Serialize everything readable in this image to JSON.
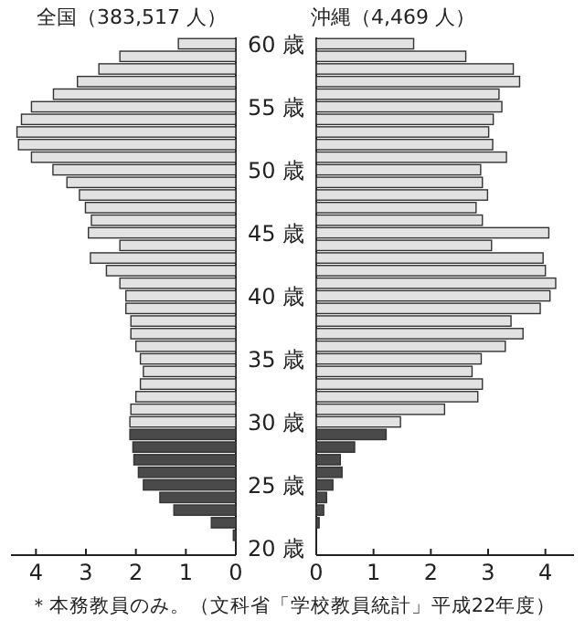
{
  "chart_data": [
    {
      "type": "bar",
      "orientation": "horizontal",
      "title": "全国（383,517 人）",
      "categories": [
        "60 歳",
        null,
        null,
        null,
        null,
        "55 歳",
        null,
        null,
        null,
        null,
        "50 歳",
        null,
        null,
        null,
        null,
        "45 歳",
        null,
        null,
        null,
        null,
        "40 歳",
        null,
        null,
        null,
        null,
        "35 歳",
        null,
        null,
        null,
        null,
        "30 歳",
        null,
        null,
        null,
        null,
        "25 歳",
        null,
        null,
        null,
        null,
        "20 歳"
      ],
      "values": [
        1.15,
        2.32,
        2.74,
        3.17,
        3.65,
        4.09,
        4.29,
        4.38,
        4.35,
        4.09,
        3.66,
        3.38,
        3.13,
        3.01,
        2.89,
        2.95,
        2.32,
        2.91,
        2.59,
        2.32,
        2.2,
        2.2,
        2.1,
        2.1,
        2.0,
        1.91,
        1.85,
        1.91,
        2.0,
        2.1,
        2.12,
        2.12,
        2.06,
        2.04,
        1.95,
        1.85,
        1.52,
        1.24,
        0.49,
        0.05,
        0
      ],
      "colors": [
        "#e2e2e2",
        "#e2e2e2",
        "#e2e2e2",
        "#e2e2e2",
        "#e2e2e2",
        "#e2e2e2",
        "#e2e2e2",
        "#e2e2e2",
        "#e2e2e2",
        "#e2e2e2",
        "#e2e2e2",
        "#e2e2e2",
        "#e2e2e2",
        "#e2e2e2",
        "#e2e2e2",
        "#e2e2e2",
        "#e2e2e2",
        "#e2e2e2",
        "#e2e2e2",
        "#e2e2e2",
        "#e2e2e2",
        "#e2e2e2",
        "#e2e2e2",
        "#e2e2e2",
        "#e2e2e2",
        "#e2e2e2",
        "#e2e2e2",
        "#e2e2e2",
        "#e2e2e2",
        "#e2e2e2",
        "#e2e2e2",
        "#4a4a4a",
        "#4a4a4a",
        "#4a4a4a",
        "#4a4a4a",
        "#4a4a4a",
        "#4a4a4a",
        "#4a4a4a",
        "#4a4a4a",
        "#4a4a4a",
        "#4a4a4a"
      ],
      "xlim": [
        4.5,
        0
      ],
      "xticks": [
        4,
        3,
        2,
        1,
        0
      ],
      "annotations": [
        "＊本務教員のみ。（文科省「学校教員統計」平成22年度）"
      ]
    },
    {
      "type": "bar",
      "orientation": "horizontal",
      "title": "沖縄（4,469 人）",
      "categories": [
        null,
        null,
        null,
        null,
        null,
        null,
        null,
        null,
        null,
        null,
        null,
        null,
        null,
        null,
        null,
        null,
        null,
        null,
        null,
        null,
        null,
        null,
        null,
        null,
        null,
        null,
        null,
        null,
        null,
        null,
        null,
        null,
        null,
        null,
        null,
        null,
        null,
        null,
        null,
        null,
        null
      ],
      "values": [
        1.7,
        2.61,
        3.44,
        3.55,
        3.19,
        3.24,
        3.09,
        3.01,
        3.08,
        3.32,
        2.87,
        2.9,
        2.99,
        2.79,
        2.9,
        4.06,
        3.06,
        3.96,
        4.0,
        4.18,
        4.08,
        3.91,
        3.4,
        3.61,
        3.3,
        2.88,
        2.72,
        2.9,
        2.82,
        2.24,
        1.47,
        1.22,
        0.67,
        0.42,
        0.45,
        0.29,
        0.18,
        0.13,
        0.05,
        0,
        0
      ],
      "colors": [
        "#e2e2e2",
        "#e2e2e2",
        "#e2e2e2",
        "#e2e2e2",
        "#e2e2e2",
        "#e2e2e2",
        "#e2e2e2",
        "#e2e2e2",
        "#e2e2e2",
        "#e2e2e2",
        "#e2e2e2",
        "#e2e2e2",
        "#e2e2e2",
        "#e2e2e2",
        "#e2e2e2",
        "#e2e2e2",
        "#e2e2e2",
        "#e2e2e2",
        "#e2e2e2",
        "#e2e2e2",
        "#e2e2e2",
        "#e2e2e2",
        "#e2e2e2",
        "#e2e2e2",
        "#e2e2e2",
        "#e2e2e2",
        "#e2e2e2",
        "#e2e2e2",
        "#e2e2e2",
        "#e2e2e2",
        "#e2e2e2",
        "#4a4a4a",
        "#4a4a4a",
        "#4a4a4a",
        "#4a4a4a",
        "#4a4a4a",
        "#4a4a4a",
        "#4a4a4a",
        "#4a4a4a",
        "#4a4a4a",
        "#4a4a4a"
      ],
      "xlim": [
        0,
        4.5
      ],
      "xticks": [
        0,
        1,
        2,
        3,
        4
      ],
      "tick_labels": "x"
    }
  ]
}
